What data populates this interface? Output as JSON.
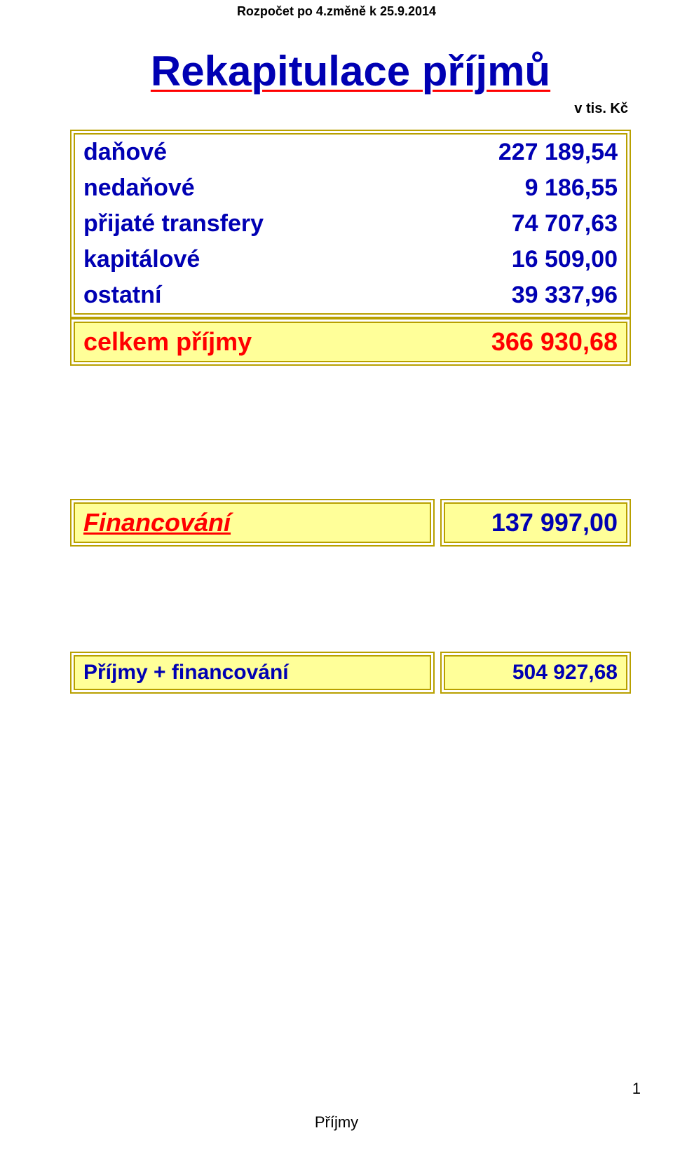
{
  "header_note": "Rozpočet po 4.změně k 25.9.2014",
  "title": "Rekapitulace příjmů",
  "unit_note": "v tis. Kč",
  "rows": [
    {
      "label": "daňové",
      "value": "227 189,54"
    },
    {
      "label": "nedaňové",
      "value": "9 186,55"
    },
    {
      "label": "přijaté transfery",
      "value": "74 707,63"
    },
    {
      "label": "kapitálové",
      "value": "16 509,00"
    },
    {
      "label": "ostatní",
      "value": "39 337,96"
    }
  ],
  "total": {
    "label": "celkem příjmy",
    "value": "366 930,68"
  },
  "financing": {
    "label": "Financování",
    "value": "137 997,00"
  },
  "grand_total": {
    "label": "Příjmy + financování",
    "value": "504 927,68"
  },
  "page_number": "1",
  "footer_label": "Příjmy",
  "style": {
    "colors": {
      "title_text": "#0000b3",
      "title_underline": "#ff0000",
      "blue_text": "#0000b3",
      "red_text": "#ff0000",
      "gold_border": "#b8a000",
      "yellow_fill": "#ffff99",
      "page_bg": "#ffffff",
      "black_text": "#000000"
    },
    "fonts": {
      "title_pt": 44,
      "row_pt": 26,
      "total_pt": 27,
      "pair_large_pt": 27,
      "pair_small_pt": 23,
      "header_note_pt": 14,
      "unit_note_pt": 15
    }
  }
}
